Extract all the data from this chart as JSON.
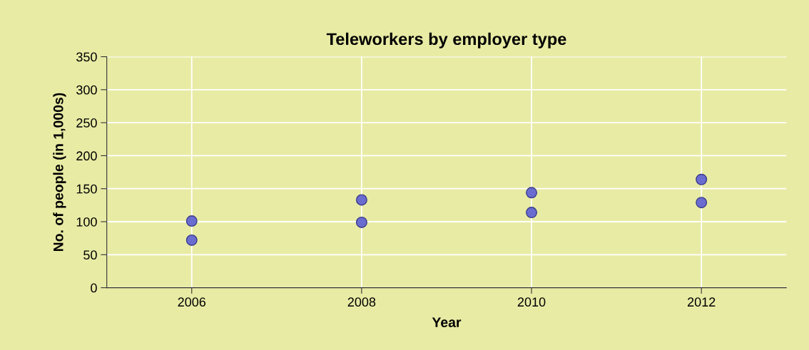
{
  "chart_data": {
    "type": "scatter",
    "title": "Teleworkers by employer type",
    "xlabel": "Year",
    "ylabel": "No. of people (in 1,000s)",
    "x": [
      2006,
      2008,
      2010,
      2012
    ],
    "series": [
      {
        "color": "#6a6ccf",
        "values": [
          101,
          133,
          144,
          164
        ]
      },
      {
        "color": "#6a6ccf",
        "values": [
          72,
          99,
          114,
          129
        ]
      }
    ],
    "xlim": [
      2005,
      2013
    ],
    "xticks": [
      2006,
      2008,
      2010,
      2012
    ],
    "ylim": [
      0,
      350
    ],
    "yticks": [
      0,
      50,
      100,
      150,
      200,
      250,
      300,
      350
    ],
    "grid": true,
    "marker": "circle",
    "legend": false
  }
}
